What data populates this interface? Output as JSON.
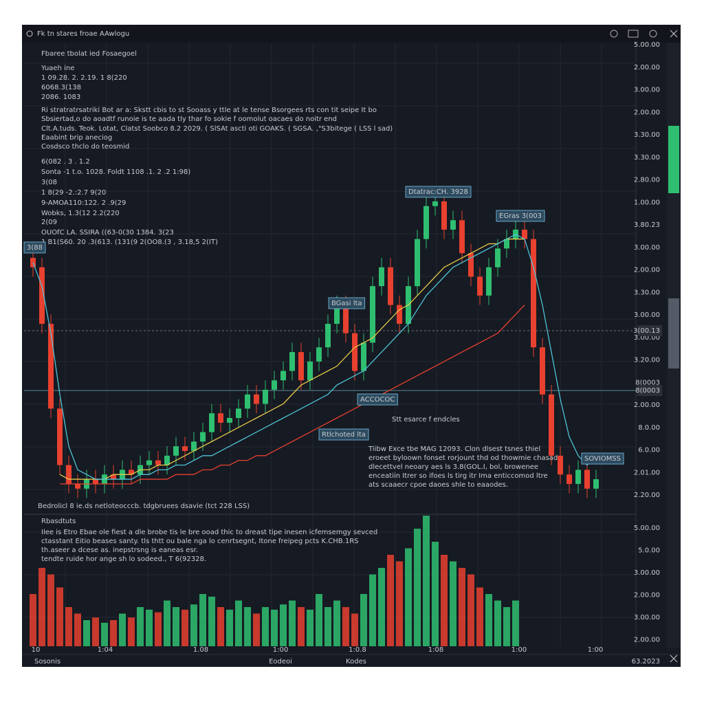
{
  "window_title": "Fk tn stares froae AAwlogu",
  "info_lines": [
    {
      "text": "Fbaree tbolat ied Fosaegoel",
      "color": "#e6e6e6"
    },
    {
      "text": "Yuaeh ine",
      "color": "#4fc3d9"
    },
    {
      "text": "1 09.28. 2. 2.19. 1 8(220",
      "color": "#3ddc6a"
    },
    {
      "text": "6068.3(138",
      "color": "#f04438"
    },
    {
      "text": "2086. 1083",
      "color": "#f2d24b"
    },
    {
      "text": "Ri stratratrsatriki Bot ar a: Skstt cbis to st Sooass y ttle at le tense Bsorgees rts con tit seipe It bo",
      "color": "#d0d0d0"
    },
    {
      "text": "Sbsiertad,o do aoadtf runoie is te aada tly thar fo sokie f oomolut oacaes do noitr end",
      "color": "#d0d0d0"
    },
    {
      "text": "Clt.A.tuds. Teok. Lotat, Clatst Soobco 8.2 2029. ( SlSAt ascti oti GOAKS. ( SGSA. ,\"S3bitege ( LSS l sad)",
      "color": "#f2d24b"
    },
    {
      "text": "Eaabint brip aneciog",
      "color": "#d0d0d0"
    },
    {
      "text": "Cosdsco thclo do teosmid",
      "color": "#d0d0d0"
    }
  ],
  "info_lines_2": [
    {
      "text": "6(082 . 3 . 1.2",
      "color": "#9aa0a8"
    },
    {
      "text": "Sonta -1 t.o. 1028. Foldt 1108 .1. 2 .2 1:98)",
      "color": "#9aa0a8"
    },
    {
      "text": "3(08",
      "color": "#d0d0d0"
    },
    {
      "text": "1 8(29 -2.:2.7 9(20",
      "color": "#3ddc6a"
    },
    {
      "text": "9-AMOA110:122. 2 .9(29",
      "color": "#f04438"
    },
    {
      "text": "Wobks, 1.3(12 2.2(220",
      "color": "#4fc3d9"
    },
    {
      "text": "2(09",
      "color": "#d0d0d0"
    },
    {
      "text": "OUOfC LA. SSIRA ((63-0(30 1384. 3(23",
      "color": "#f04438"
    },
    {
      "text": "1 B1(S60. 20 .3(613. (131(9 2(OO8.(3 , 3.18,5 2(IT)",
      "color": "#3ddc6a"
    }
  ],
  "annotations": [
    "3(88",
    "Dtatrac:CH. 3928",
    "EGras 3(003",
    "BGasi lta",
    "ACCOCOC",
    "Rtlchoted lta",
    "SOVIOMSS"
  ],
  "candle_note": "Stt esarce f endcles",
  "note_lines": [
    "Tiibw Exce tbe MAG 12093. Clon dlsest tsnes thiel",
    "eroeet byloown fonset rorjount thd od thowmie chasad",
    "dlecettvel neoary aes ls 3.8(GOL.I, bol, browenee",
    "enceatiin Itrer so ifoes ls tirg itr Ima enticcomod ltre",
    "ats scaaecr cpoe daoes shle to eaaodes."
  ],
  "price_footer": "Bedrolicl 8 ie.ds netloteocccb. tdgbruees dsavie (tct 228 LSS)",
  "volume_title": "Rbasdtuts",
  "volume_lines": [
    "Ilee is Etro Ebae ole fiest a dle brobe tis le bre ooad thic to dreast tipe inesen icfemsemgy sevced",
    "ctasstant Eitio beases santy. tls thtt ou bale nga lo cenrtsegnt, Itone freipeg pcts K.CHB.1RS",
    "th.aseer a dcese as. inepstrsng is eaneas esr.",
    "tendte ruide hor ange sh lo sodeed., T 6(92328."
  ],
  "price_axis": [
    "5.00.00",
    "2.00.00",
    "3.00.00",
    "2.00.00",
    "3.30.00",
    "3.30.00",
    "2.80.00",
    "1.00.00",
    "3.80.23",
    "3.00.00",
    "2.00.00",
    "3.30.00",
    "3.00.00",
    "3.00.00",
    "3.20.00",
    "8(0003",
    "2.00.00",
    "8.0.00",
    "6.0.00",
    "2.01.00",
    "2.20.00"
  ],
  "price_markers": [
    "3(00.13",
    "8(0003"
  ],
  "volume_axis": [
    "5.00.00",
    "5.0.00",
    "3.00.00",
    "2.00.00",
    "3.00.00",
    "2.00.00"
  ],
  "time_axis": [
    "10",
    "1:04",
    "1.08",
    "1:00",
    "1:0.8",
    "1:08",
    "1:00",
    "1:00"
  ],
  "status": [
    "Sosonis",
    "Eodeoi",
    "Kodes",
    "63.2023"
  ],
  "chart_data": {
    "type": "candlestick",
    "ylim": [
      0,
      100
    ],
    "up_color": "#2fbf71",
    "down_color": "#e8412f",
    "open": [
      54,
      52,
      40,
      22,
      10,
      6,
      5,
      7,
      6,
      8,
      7,
      9,
      8,
      10,
      11,
      10,
      12,
      14,
      13,
      15,
      17,
      21,
      19,
      20,
      22,
      25,
      23,
      26,
      28,
      30,
      34,
      28,
      32,
      35,
      40,
      44,
      38,
      30,
      36,
      48,
      52,
      44,
      40,
      48,
      58,
      65,
      66,
      60,
      62,
      55,
      50,
      46,
      52,
      56,
      58,
      60,
      58,
      35,
      25,
      12,
      8,
      6,
      9,
      5
    ],
    "high": [
      56,
      54,
      42,
      24,
      12,
      8,
      9,
      9,
      10,
      10,
      11,
      11,
      12,
      13,
      13,
      14,
      16,
      16,
      17,
      19,
      23,
      23,
      22,
      24,
      27,
      27,
      28,
      30,
      32,
      36,
      36,
      34,
      37,
      42,
      46,
      46,
      40,
      38,
      50,
      54,
      54,
      46,
      50,
      60,
      67,
      68,
      68,
      64,
      64,
      57,
      52,
      54,
      58,
      60,
      62,
      62,
      60,
      37,
      27,
      14,
      10,
      11,
      11,
      9
    ],
    "low": [
      50,
      38,
      20,
      8,
      4,
      3,
      3,
      4,
      4,
      5,
      5,
      6,
      6,
      8,
      8,
      8,
      10,
      11,
      11,
      13,
      15,
      17,
      17,
      18,
      20,
      21,
      21,
      24,
      26,
      28,
      26,
      26,
      30,
      33,
      38,
      36,
      28,
      28,
      34,
      46,
      42,
      38,
      38,
      46,
      56,
      63,
      58,
      58,
      53,
      48,
      44,
      44,
      50,
      54,
      56,
      56,
      33,
      23,
      10,
      6,
      4,
      4,
      3,
      3
    ],
    "close": [
      52,
      40,
      22,
      10,
      6,
      5,
      7,
      6,
      8,
      7,
      9,
      8,
      10,
      11,
      10,
      12,
      14,
      13,
      15,
      17,
      21,
      19,
      20,
      22,
      25,
      23,
      26,
      28,
      30,
      34,
      28,
      32,
      35,
      40,
      44,
      38,
      30,
      36,
      48,
      52,
      44,
      40,
      48,
      58,
      65,
      66,
      60,
      62,
      55,
      50,
      46,
      52,
      56,
      58,
      60,
      58,
      35,
      25,
      12,
      8,
      6,
      9,
      5,
      7
    ],
    "lines": [
      {
        "color": "#e6c84a",
        "values": [
          null,
          null,
          null,
          8,
          7,
          7,
          7,
          7,
          7,
          8,
          8,
          8,
          9,
          9,
          10,
          10,
          11,
          12,
          13,
          14,
          15,
          16,
          17,
          18,
          19,
          20,
          21,
          22,
          23,
          25,
          27,
          28,
          29,
          30,
          31,
          33,
          35,
          36,
          37,
          39,
          41,
          43,
          44,
          46,
          48,
          50,
          52,
          53,
          54,
          55,
          56,
          57,
          57,
          58,
          58,
          58,
          null,
          null,
          null,
          null,
          null,
          null,
          null,
          null
        ]
      },
      {
        "color": "#4fc3d9",
        "values": [
          53,
          48,
          38,
          25,
          14,
          9,
          8,
          7,
          7,
          7,
          7,
          7,
          8,
          8,
          9,
          9,
          10,
          10,
          11,
          12,
          12,
          13,
          14,
          15,
          16,
          17,
          18,
          19,
          20,
          21,
          22,
          23,
          24,
          25,
          27,
          28,
          29,
          30,
          32,
          34,
          36,
          38,
          40,
          43,
          46,
          48,
          50,
          52,
          53,
          54,
          55,
          56,
          57,
          58,
          59,
          58,
          52,
          44,
          34,
          24,
          16,
          12,
          10,
          12
        ]
      },
      {
        "color": "#e8412f",
        "values": [
          null,
          null,
          null,
          6,
          6,
          6,
          6,
          6,
          6,
          6,
          6,
          6,
          7,
          7,
          7,
          7,
          8,
          8,
          8,
          9,
          9,
          10,
          10,
          11,
          11,
          12,
          12,
          13,
          14,
          15,
          16,
          17,
          18,
          19,
          20,
          21,
          22,
          23,
          24,
          25,
          26,
          27,
          28,
          29,
          30,
          31,
          32,
          33,
          34,
          35,
          36,
          37,
          38,
          40,
          42,
          44,
          null,
          null,
          null,
          null,
          null,
          null,
          null,
          null
        ]
      }
    ],
    "volume": {
      "ylim": [
        0,
        100
      ],
      "values": [
        40,
        60,
        55,
        45,
        30,
        25,
        20,
        22,
        18,
        20,
        25,
        22,
        30,
        28,
        26,
        35,
        30,
        28,
        32,
        40,
        38,
        30,
        28,
        35,
        30,
        25,
        30,
        28,
        32,
        35,
        30,
        28,
        40,
        30,
        35,
        30,
        25,
        40,
        55,
        60,
        70,
        65,
        75,
        90,
        100,
        80,
        70,
        65,
        60,
        55,
        45,
        40,
        35,
        30,
        35,
        null,
        null,
        null,
        null,
        null,
        null,
        null,
        null,
        null
      ]
    }
  }
}
